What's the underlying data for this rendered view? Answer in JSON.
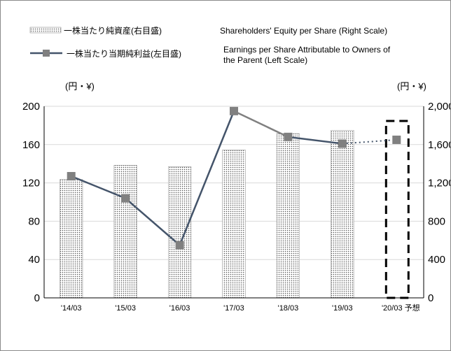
{
  "chart_data": {
    "type": "bar+line",
    "categories": [
      "'14/03",
      "'15/03",
      "'16/03",
      "'17/03",
      "'18/03",
      "'19/03",
      "'20/03 予想"
    ],
    "series": [
      {
        "name_ja": "一株当たり純資産(右目盛)",
        "name_en": "Shareholders' Equity per Share (Right Scale)",
        "type": "bar",
        "axis": "right",
        "values": [
          1235,
          1385,
          1370,
          1545,
          1715,
          1750,
          null
        ]
      },
      {
        "name_ja": "一株当たり当期純利益(左目盛)",
        "name_en_line1": "Earnings per Share Attributable to Owners of",
        "name_en_line2": "the Parent (Left Scale)",
        "type": "line",
        "axis": "left",
        "values": [
          127,
          104,
          55,
          195,
          168,
          161,
          165
        ],
        "forecast_last_point": true
      }
    ],
    "left_unit": "(円・¥)",
    "right_unit": "(円・¥)",
    "y_left": {
      "min": 0,
      "max": 200,
      "ticks": [
        "0",
        "40",
        "80",
        "120",
        "160",
        "200"
      ]
    },
    "y_right": {
      "min": 0,
      "max": 2000,
      "ticks": [
        "0",
        "400",
        "800",
        "1,200",
        "1,600",
        "2,000"
      ]
    },
    "grid": true,
    "legend_position": "top",
    "colors": {
      "line_actual": "#44546a",
      "line_segment_2017": "#808080",
      "line_forecast": "#44546a",
      "marker": "#808080",
      "bar_fill": "#ffffff",
      "bar_dots": "#555555",
      "grid": "#d9d9d9",
      "forecast_box": "#000000"
    }
  }
}
